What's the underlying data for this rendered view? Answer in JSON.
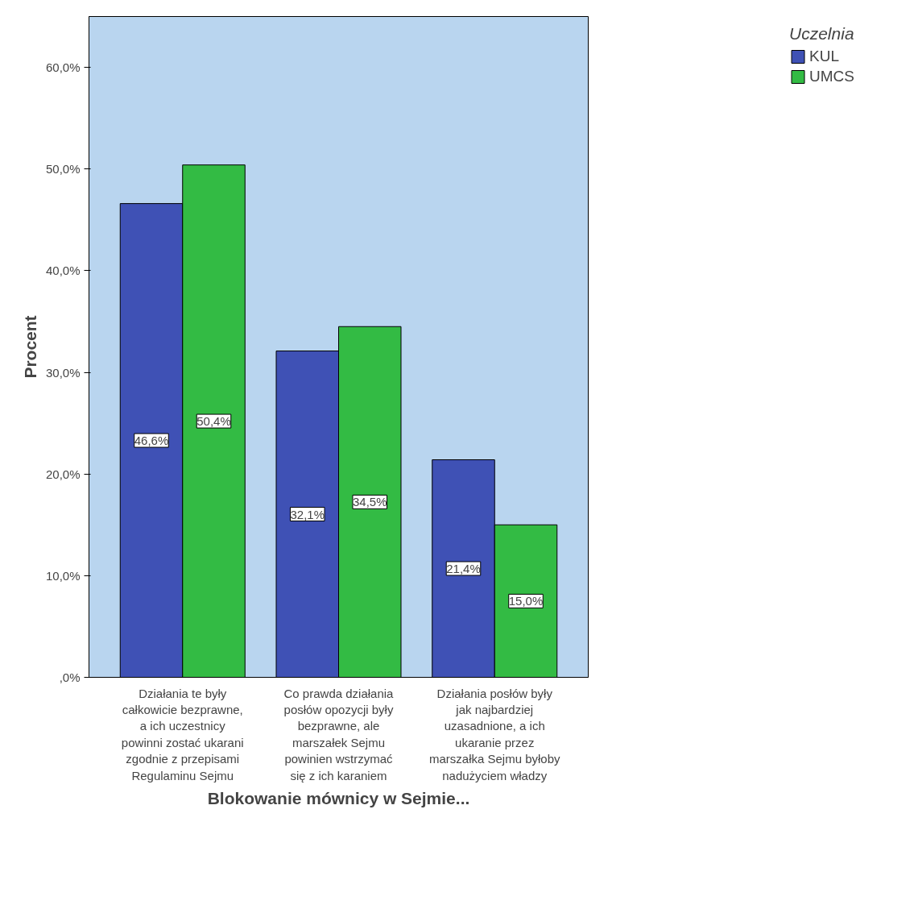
{
  "chart_data": {
    "type": "bar",
    "xlabel": "Blokowanie mównicy w Sejmie...",
    "ylabel": "Procent",
    "legend_title": "Uczelnia",
    "legend": "top right",
    "grid": false,
    "categories": [
      "Działania te były\ncałkowicie bezprawne,\na ich uczestnicy\npowinni zostać ukarani\nzgodnie z przepisami\nRegulaminu Sejmu",
      "Co prawda działania\nposłów opozycji były\nbezprawne, ale\nmarszałek Sejmu\npowinien wstrzymać\nsię z ich karaniem",
      "Działania posłów były\njak najbardziej\nuzasadnione, a ich\nukaranie przez\nmarszałka Sejmu byłoby\nnadużyciem władzy"
    ],
    "series": [
      {
        "name": "KUL",
        "color": "#3f51b5",
        "values": [
          46.6,
          32.1,
          21.4
        ],
        "value_labels": [
          "46,6%",
          "32,1%",
          "21,4%"
        ]
      },
      {
        "name": "UMCS",
        "color": "#33bb44",
        "values": [
          50.4,
          34.5,
          15.0
        ],
        "value_labels": [
          "50,4%",
          "34,5%",
          "15,0%"
        ]
      }
    ],
    "ylim": [
      0,
      65
    ],
    "yticks": [
      {
        "value": 0,
        "label": ",0%"
      },
      {
        "value": 10,
        "label": "10,0%"
      },
      {
        "value": 20,
        "label": "20,0%"
      },
      {
        "value": 30,
        "label": "30,0%"
      },
      {
        "value": 40,
        "label": "40,0%"
      },
      {
        "value": 50,
        "label": "50,0%"
      },
      {
        "value": 60,
        "label": "60,0%"
      }
    ]
  }
}
